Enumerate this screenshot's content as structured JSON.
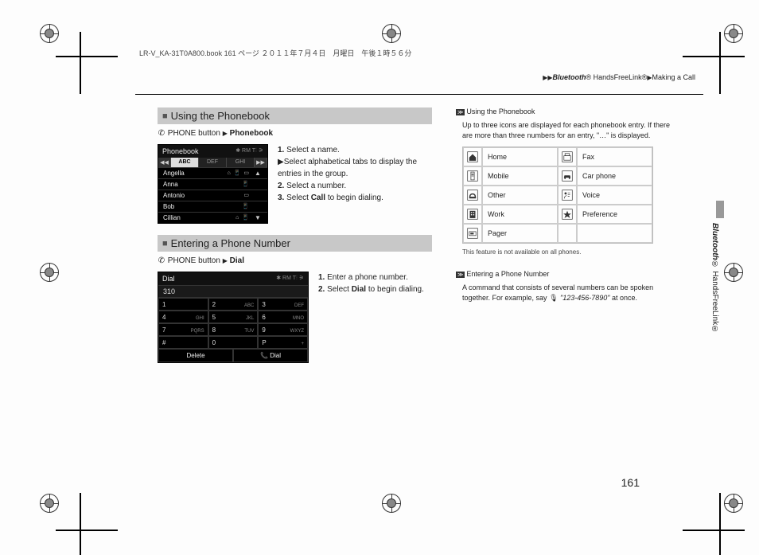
{
  "meta": {
    "header": "LR-V_KA-31T0A800.book  161 ページ  ２０１１年７月４日　月曜日　午後１時５６分",
    "breadcrumb_bt": "Bluetooth",
    "breadcrumb_rest1": "® HandsFreeLink®",
    "breadcrumb_rest2": "Making a Call",
    "page_number": "161",
    "side_bt": "Bluetooth",
    "side_rest": "® HandsFreeLink®"
  },
  "section1": {
    "title": "Using the Phonebook",
    "nav_prefix": "PHONE button",
    "nav_target": "Phonebook",
    "steps": {
      "s1": "Select a name.",
      "s1_sub": "Select alphabetical tabs to display the entries in the group.",
      "s2": "Select a number.",
      "s3_a": "Select ",
      "s3_b": "Call",
      "s3_c": " to begin dialing."
    },
    "screenshot": {
      "title": "Phonebook",
      "status": "✱ RM T⫶ ⚞",
      "tabs": [
        "◀◀",
        "ABC",
        "DEF",
        "GHI",
        "▶▶"
      ],
      "active_tab": 1,
      "rows": [
        {
          "name": "Angella",
          "icons": "⌂ 📱 ▭"
        },
        {
          "name": "Anna",
          "icons": "📱"
        },
        {
          "name": "Antonio",
          "icons": "▭"
        },
        {
          "name": "Bob",
          "icons": "📱"
        },
        {
          "name": "Cillian",
          "icons": "⌂ 📱"
        }
      ]
    }
  },
  "section2": {
    "title": "Entering a Phone Number",
    "nav_prefix": "PHONE button",
    "nav_target": "Dial",
    "steps": {
      "s1": "Enter a phone number.",
      "s2_a": "Select ",
      "s2_b": "Dial",
      "s2_c": " to begin dialing."
    },
    "screenshot": {
      "title": "Dial",
      "status": "✱ RM T⫶ ⚞",
      "display": "310",
      "keys": [
        {
          "n": "1",
          "s": ""
        },
        {
          "n": "2",
          "s": "ABC"
        },
        {
          "n": "3",
          "s": "DEF"
        },
        {
          "n": "4",
          "s": "GHI"
        },
        {
          "n": "5",
          "s": "JKL"
        },
        {
          "n": "6",
          "s": "MNO"
        },
        {
          "n": "7",
          "s": "PQRS"
        },
        {
          "n": "8",
          "s": "TUV"
        },
        {
          "n": "9",
          "s": "WXYZ"
        },
        {
          "n": "#",
          "s": ""
        },
        {
          "n": "0",
          "s": ""
        },
        {
          "n": "P",
          "s": "+"
        }
      ],
      "btn_delete": "Delete",
      "btn_dial": "Dial"
    }
  },
  "notes": {
    "n1_title": "Using the Phonebook",
    "n1_body": "Up to three icons are displayed for each phonebook entry. If there are more than three numbers for an entry, \"…\" is displayed.",
    "icons": [
      {
        "label": "Home"
      },
      {
        "label": "Fax"
      },
      {
        "label": "Mobile"
      },
      {
        "label": "Car phone"
      },
      {
        "label": "Other"
      },
      {
        "label": "Voice"
      },
      {
        "label": "Work"
      },
      {
        "label": "Preference"
      },
      {
        "label": "Pager"
      }
    ],
    "n1_foot": "This feature is not available on all phones.",
    "n2_title": "Entering a Phone Number",
    "n2_body_a": "A command that consists of several numbers can be spoken together. For example, say ",
    "n2_body_b": "\"123-456-7890\"",
    "n2_body_c": " at once."
  }
}
